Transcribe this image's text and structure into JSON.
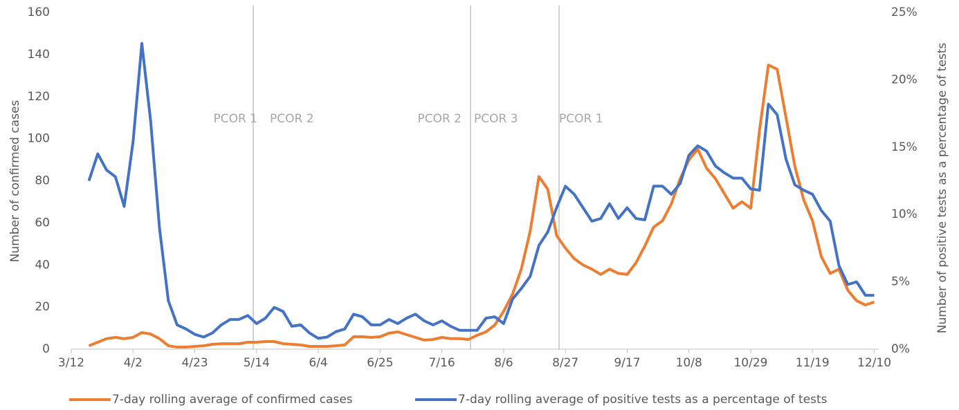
{
  "chart_data": {
    "type": "line",
    "y_label": "Number of confirmed cases",
    "y2_label": "Number of positive tests as a percentage of tests",
    "categories": [
      "3/12",
      null,
      null,
      null,
      null,
      null,
      null,
      "4/2",
      null,
      null,
      null,
      null,
      null,
      null,
      "4/23",
      null,
      null,
      null,
      null,
      null,
      null,
      "5/14",
      null,
      null,
      null,
      null,
      null,
      null,
      "6/4",
      null,
      null,
      null,
      null,
      null,
      null,
      "6/25",
      null,
      null,
      null,
      null,
      null,
      null,
      "7/16",
      null,
      null,
      null,
      null,
      null,
      null,
      "8/6",
      null,
      null,
      null,
      null,
      null,
      null,
      "8/27",
      null,
      null,
      null,
      null,
      null,
      null,
      "9/17",
      null,
      null,
      null,
      null,
      null,
      null,
      "10/8",
      null,
      null,
      null,
      null,
      null,
      null,
      "10/29",
      null,
      null,
      null,
      null,
      null,
      null,
      "11/19",
      null,
      null,
      null,
      null,
      null,
      null,
      "12/10"
    ],
    "series": [
      {
        "name": "7-day rolling average of confirmed cases",
        "color": "#ED7D31",
        "axis": "y",
        "values": [
          null,
          null,
          1.6,
          3.3,
          5,
          5.6,
          5,
          5.6,
          7.9,
          7.2,
          5,
          1.6,
          1,
          1,
          1.3,
          1.6,
          2.3,
          2.6,
          2.6,
          2.6,
          3.3,
          3.3,
          3.6,
          3.6,
          2.6,
          2.3,
          2,
          1.3,
          1.3,
          1.3,
          1.6,
          2,
          5.9,
          5.9,
          5.6,
          5.9,
          7.6,
          8.2,
          6.9,
          5.6,
          4.3,
          4.6,
          5.6,
          5,
          5,
          4.6,
          6.6,
          8.2,
          11.5,
          18,
          26,
          38,
          56,
          82,
          76,
          54,
          48,
          43,
          40,
          38,
          35.5,
          38,
          36,
          35.5,
          41,
          49,
          58,
          61,
          69,
          81,
          90,
          95,
          86,
          81,
          74,
          67,
          70,
          67,
          104,
          135,
          133,
          110,
          87,
          71,
          61,
          44,
          36,
          38,
          28,
          23,
          21,
          22.4
        ]
      },
      {
        "name": "7-day rolling average of positive tests as a percentage of tests",
        "color": "#4472C4",
        "axis": "y2",
        "values": [
          null,
          null,
          12.5,
          14.5,
          13.3,
          12.8,
          10.6,
          15.4,
          22.7,
          16.9,
          9,
          3.6,
          1.8,
          1.5,
          1.1,
          0.9,
          1.2,
          1.8,
          2.2,
          2.2,
          2.5,
          1.9,
          2.3,
          3.1,
          2.8,
          1.7,
          1.8,
          1.2,
          0.8,
          0.9,
          1.3,
          1.5,
          2.6,
          2.4,
          1.8,
          1.8,
          2.2,
          1.9,
          2.3,
          2.6,
          2.1,
          1.8,
          2.1,
          1.7,
          1.4,
          1.4,
          1.4,
          2.3,
          2.4,
          1.9,
          3.7,
          4.5,
          5.4,
          7.7,
          8.7,
          10.5,
          12.1,
          11.5,
          10.5,
          9.5,
          9.7,
          10.8,
          9.7,
          10.5,
          9.7,
          9.6,
          12.1,
          12.1,
          11.5,
          12.3,
          14.4,
          15.1,
          14.7,
          13.6,
          13.1,
          12.7,
          12.7,
          11.9,
          11.8,
          18.2,
          17.4,
          14.1,
          12.2,
          11.8,
          11.5,
          10.3,
          9.5,
          6.2,
          4.8,
          5,
          4,
          4
        ]
      }
    ],
    "annotations": [
      "PCOR 1",
      "PCOR 2",
      "PCOR 2",
      "PCOR 3",
      "PCOR 1"
    ],
    "ylim": [
      0,
      160
    ],
    "yticks": [
      0,
      20,
      40,
      60,
      80,
      100,
      120,
      140,
      160
    ],
    "y2lim": [
      0,
      25
    ],
    "y2ticks": [
      {
        "value": 0,
        "label": "0%"
      },
      {
        "value": 5,
        "label": "5%"
      },
      {
        "value": 10,
        "label": "10%"
      },
      {
        "value": 15,
        "label": "15%"
      },
      {
        "value": 20,
        "label": "20%"
      },
      {
        "value": 25,
        "label": "25%"
      }
    ],
    "legend": "bottom"
  }
}
